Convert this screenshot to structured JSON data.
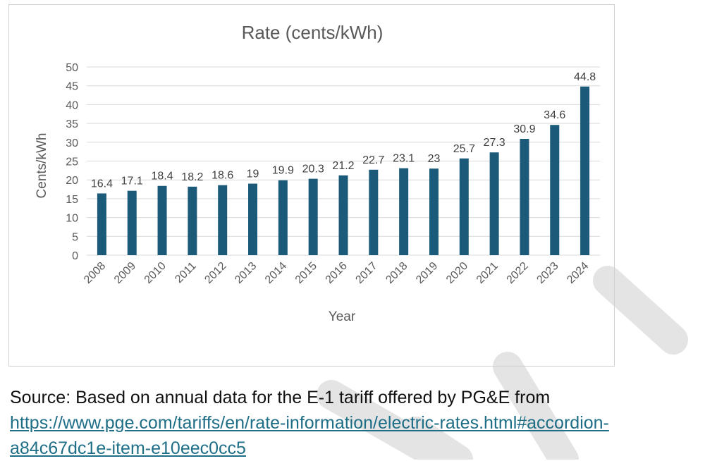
{
  "colors": {
    "bar": "#1b5a78",
    "grid": "#d9d9d9",
    "link": "#1f6e87",
    "watermark": "#e4e4e4"
  },
  "chart_data": {
    "type": "bar",
    "title": "Rate (cents/kWh)",
    "xlabel": "Year",
    "ylabel": "Cents/kWh",
    "ylim": [
      0,
      50
    ],
    "ytick_step": 5,
    "grid": true,
    "legend": "none",
    "categories": [
      "2008",
      "2009",
      "2010",
      "2011",
      "2012",
      "2013",
      "2014",
      "2015",
      "2016",
      "2017",
      "2018",
      "2019",
      "2020",
      "2021",
      "2022",
      "2023",
      "2024"
    ],
    "values": [
      16.4,
      17.1,
      18.4,
      18.2,
      18.6,
      19,
      19.9,
      20.3,
      21.2,
      22.7,
      23.1,
      23,
      25.7,
      27.3,
      30.9,
      34.6,
      44.8
    ]
  },
  "source": {
    "prefix": "Source: Based on annual data for the E-1 tariff offered by PG&E from",
    "url_line1": "https://www.pge.com/tariffs/en/rate-information/electric-rates.html#accordion-",
    "url_line2": "a84c67dc1e-item-e10eec0cc5"
  }
}
